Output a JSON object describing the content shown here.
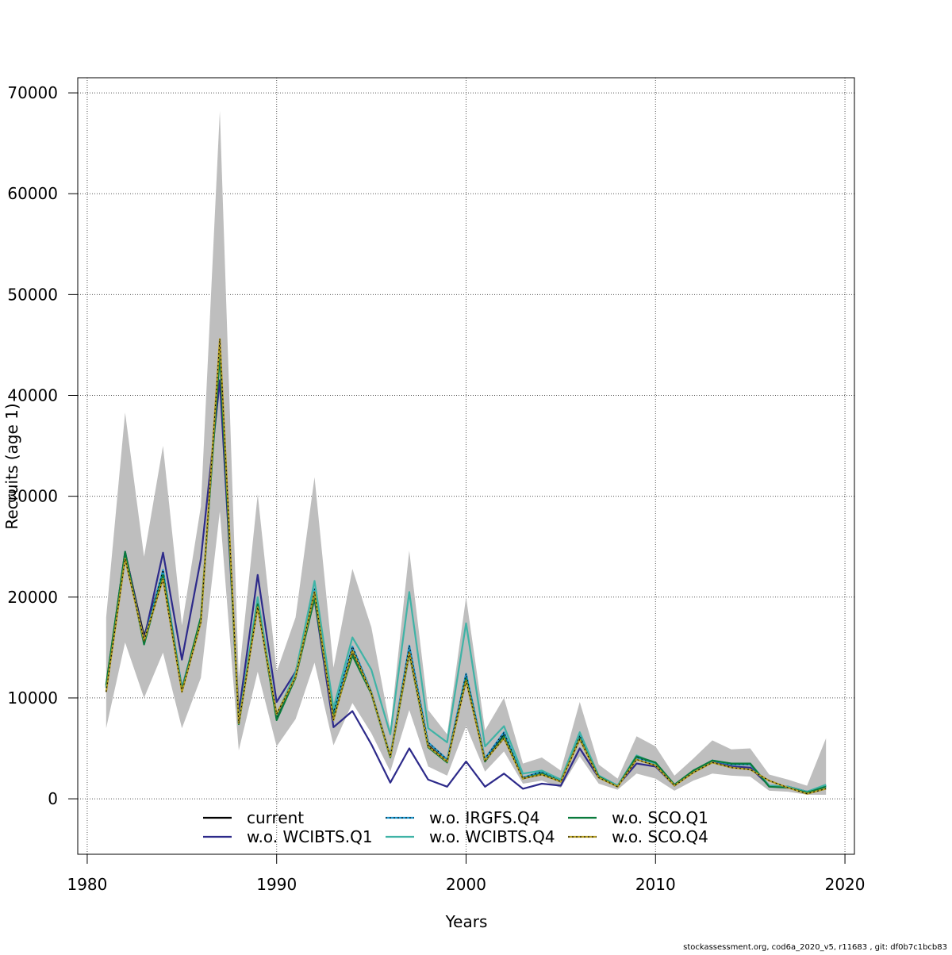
{
  "chart_data": {
    "type": "line",
    "title": "",
    "xlabel": "Years",
    "ylabel": "Recruits (age 1)",
    "xlim": [
      1980,
      2020
    ],
    "ylim": [
      -5000,
      70000
    ],
    "x_ticks": [
      1980,
      1990,
      2000,
      2010,
      2020
    ],
    "y_ticks": [
      0,
      10000,
      20000,
      30000,
      40000,
      50000,
      60000,
      70000
    ],
    "grid": true,
    "legend_position": "bottom-center",
    "x": [
      1981,
      1982,
      1983,
      1984,
      1985,
      1986,
      1987,
      1988,
      1989,
      1990,
      1991,
      1992,
      1993,
      1994,
      1995,
      1996,
      1997,
      1998,
      1999,
      2000,
      2001,
      2002,
      2003,
      2004,
      2005,
      2006,
      2007,
      2008,
      2009,
      2010,
      2011,
      2012,
      2013,
      2014,
      2015,
      2016,
      2017,
      2018,
      2019
    ],
    "confidence_band": {
      "lower": [
        7000,
        15500,
        10000,
        14500,
        7000,
        12000,
        28500,
        4800,
        12600,
        5200,
        7900,
        13500,
        5300,
        9500,
        6500,
        2700,
        8800,
        3200,
        2300,
        7200,
        2700,
        4700,
        1500,
        1800,
        1100,
        4200,
        1500,
        900,
        2500,
        2000,
        800,
        1800,
        2500,
        2300,
        2200,
        800,
        700,
        400,
        400
      ],
      "upper": [
        18000,
        38300,
        24000,
        35000,
        17200,
        29000,
        68200,
        12000,
        30200,
        12600,
        18000,
        31900,
        13000,
        22800,
        17000,
        7000,
        24600,
        8800,
        6400,
        20000,
        6800,
        10000,
        3500,
        4100,
        2800,
        9600,
        3400,
        2000,
        6200,
        5200,
        2300,
        4000,
        5800,
        4900,
        5000,
        2400,
        1900,
        1300,
        6000
      ]
    },
    "series": [
      {
        "name": "current",
        "color": "#000000",
        "dash": "solid",
        "values": [
          11200,
          24400,
          16100,
          22500,
          10900,
          17600,
          45000,
          7500,
          19400,
          8000,
          12200,
          20100,
          8000,
          14600,
          10500,
          4200,
          14800,
          5300,
          3700,
          12200,
          3700,
          6400,
          2000,
          2600,
          1700,
          6100,
          2200,
          1200,
          4200,
          3500,
          1300,
          2700,
          3800,
          3400,
          3400,
          1300,
          1200,
          700,
          1300
        ]
      },
      {
        "name": "w.o. WCIBTS.Q1",
        "color": "#2d2a8a",
        "dash": "solid",
        "values": [
          11000,
          24500,
          15800,
          24400,
          13800,
          23800,
          41500,
          8500,
          22200,
          9600,
          12600,
          19800,
          7100,
          8700,
          5400,
          1600,
          5000,
          1900,
          1200,
          3700,
          1200,
          2500,
          1000,
          1500,
          1300,
          5000,
          2100,
          1300,
          3500,
          3200,
          1300,
          2800,
          3700,
          3200,
          3100,
          1300,
          1200,
          700,
          1300
        ]
      },
      {
        "name": "w.o. IRGFS.Q4",
        "color": "#1f9ad1",
        "dash": "dotted",
        "values": [
          11100,
          24200,
          15600,
          22700,
          11000,
          17800,
          44500,
          7600,
          19800,
          8300,
          12300,
          20800,
          8600,
          15100,
          10600,
          4300,
          15200,
          5600,
          3900,
          12400,
          4000,
          6600,
          2100,
          2700,
          1800,
          6300,
          2300,
          1300,
          4100,
          3500,
          1400,
          2700,
          3800,
          3400,
          3400,
          1300,
          1200,
          700,
          1300
        ]
      },
      {
        "name": "w.o. WCIBTS.Q4",
        "color": "#3fb3a6",
        "dash": "solid",
        "values": [
          11000,
          24200,
          15500,
          22200,
          10900,
          17600,
          44800,
          7600,
          20000,
          8300,
          12500,
          21600,
          9000,
          16000,
          12800,
          6400,
          20500,
          7000,
          5600,
          17400,
          5200,
          7200,
          2500,
          2800,
          1900,
          6600,
          2300,
          1300,
          4300,
          3500,
          1400,
          2800,
          3800,
          3500,
          3500,
          1300,
          1200,
          700,
          1400
        ]
      },
      {
        "name": "w.o. SCO.Q1",
        "color": "#0a7a3c",
        "dash": "solid",
        "values": [
          11300,
          24500,
          15300,
          22200,
          10800,
          18000,
          44000,
          7400,
          19300,
          7800,
          12000,
          19900,
          8100,
          14200,
          10400,
          4100,
          14400,
          5100,
          3600,
          11900,
          3700,
          6200,
          2000,
          2500,
          1700,
          6000,
          2200,
          1200,
          4200,
          3600,
          1400,
          2800,
          3800,
          3500,
          3500,
          1200,
          1100,
          600,
          1200
        ]
      },
      {
        "name": "w.o. SCO.Q4",
        "color": "#b8a124",
        "dash": "dotted",
        "values": [
          10600,
          23800,
          15700,
          21800,
          10600,
          17500,
          45600,
          7500,
          19000,
          8400,
          12100,
          20500,
          7800,
          14700,
          10500,
          4200,
          14500,
          5200,
          3700,
          11700,
          3800,
          6000,
          2000,
          2400,
          1700,
          5900,
          2100,
          1200,
          3900,
          3300,
          1300,
          2600,
          3600,
          3100,
          2900,
          1800,
          1100,
          500,
          1000
        ]
      }
    ],
    "footer_text": "stockassessment.org, cod6a_2020_v5, r11683 , git: df0b7c1bcb83"
  }
}
